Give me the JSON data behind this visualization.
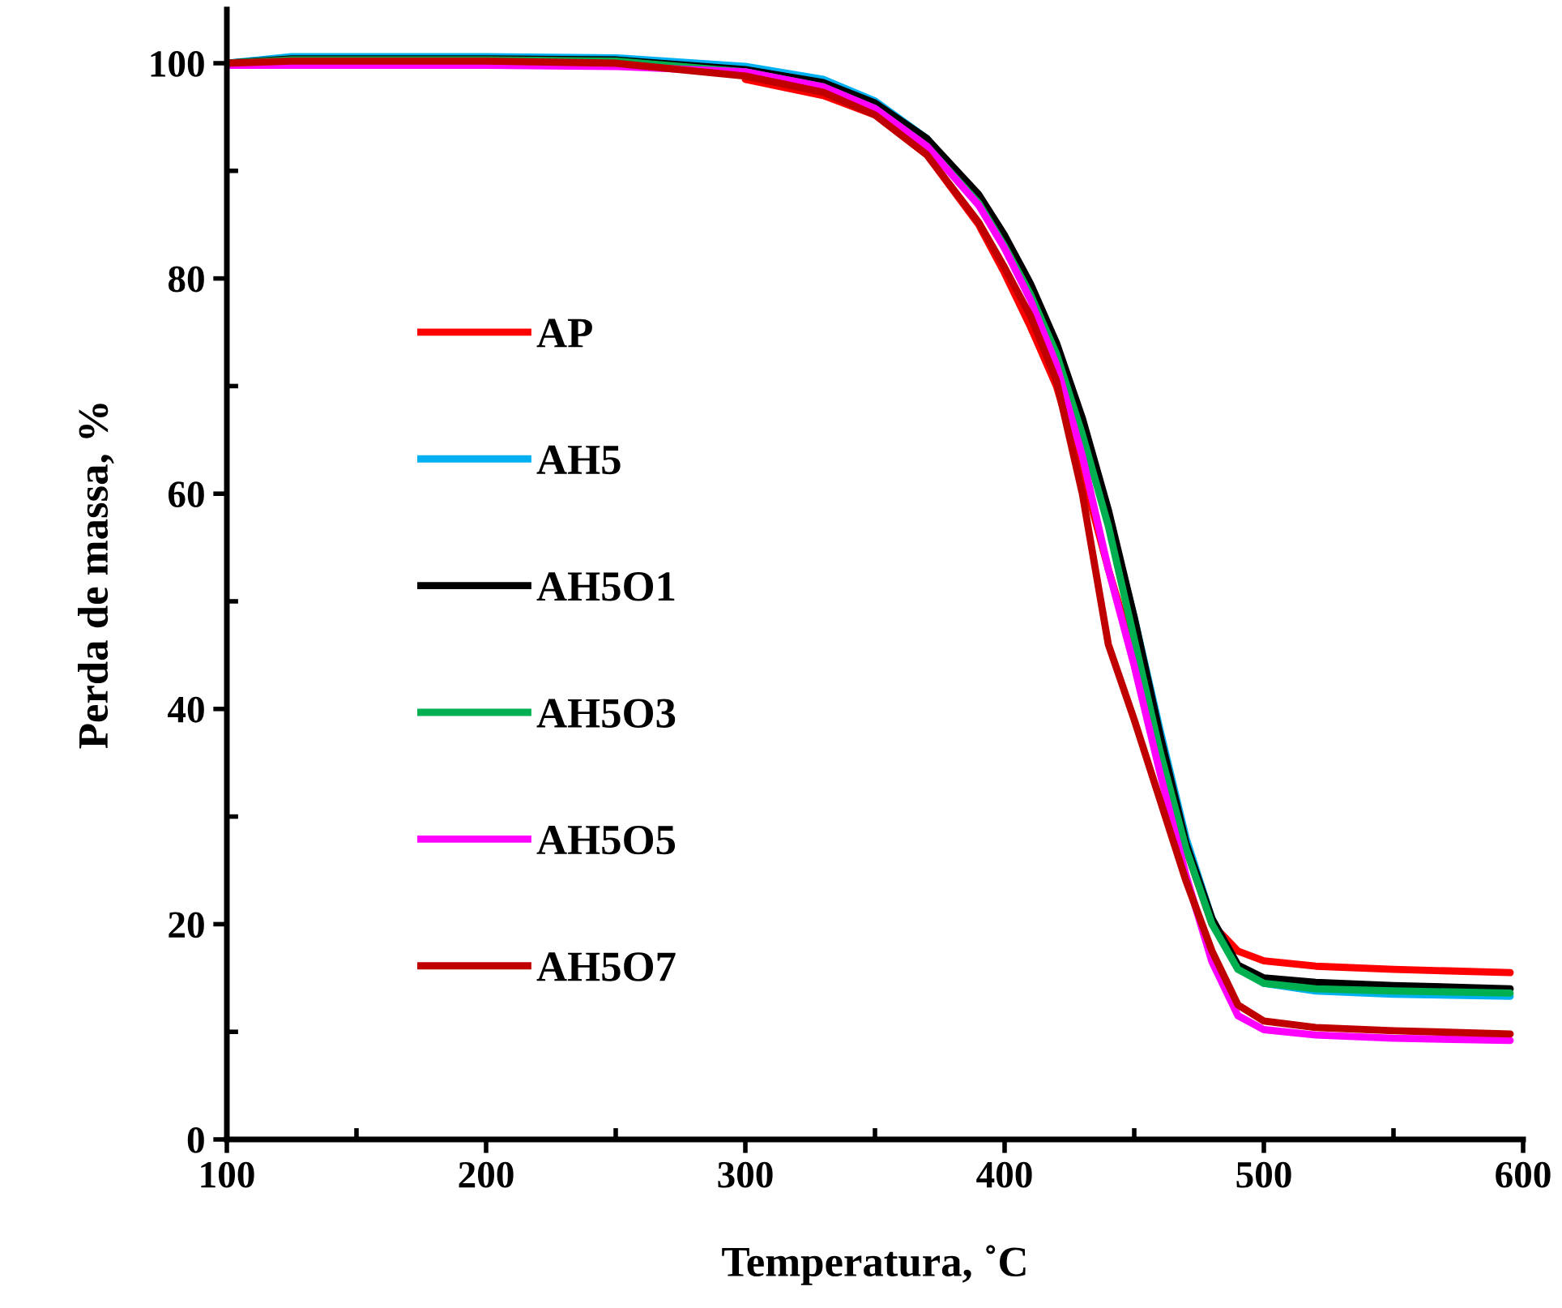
{
  "chart_data": {
    "type": "line",
    "xlabel": "Temperatura, ˚C",
    "ylabel": "Perda de massa, %",
    "x": [
      100,
      125,
      150,
      200,
      250,
      300,
      330,
      350,
      370,
      390,
      400,
      410,
      420,
      430,
      440,
      450,
      460,
      470,
      480,
      490,
      500,
      520,
      550,
      595
    ],
    "xlim": [
      100,
      600
    ],
    "xticks": [
      100,
      200,
      300,
      400,
      500,
      600
    ],
    "ylim": [
      0,
      105
    ],
    "yticks": [
      0,
      20,
      40,
      60,
      80,
      100
    ],
    "grid": false,
    "legend": "left",
    "marker": "none",
    "line_style": "solid",
    "series": [
      {
        "name": "AP",
        "color": "#ff0000",
        "values": [
          null,
          null,
          null,
          null,
          null,
          98.5,
          97.0,
          95.2,
          91.5,
          85.0,
          80.5,
          75.5,
          70.0,
          62.0,
          53.0,
          45.0,
          36.0,
          27.0,
          20.0,
          17.5,
          16.6,
          16.1,
          15.8,
          15.5
        ]
      },
      {
        "name": "AH5",
        "color": "#00b0f0",
        "values": [
          100.0,
          100.6,
          100.6,
          100.6,
          100.5,
          99.7,
          98.5,
          96.5,
          93.0,
          87.5,
          83.5,
          79.0,
          73.5,
          66.5,
          58.0,
          48.5,
          38.0,
          28.0,
          20.5,
          16.0,
          14.5,
          13.8,
          13.5,
          13.3
        ]
      },
      {
        "name": "AH5O1",
        "color": "#000000",
        "values": [
          100.0,
          100.4,
          100.4,
          100.4,
          100.3,
          99.4,
          98.2,
          96.3,
          93.0,
          87.8,
          84.0,
          79.5,
          74.0,
          67.0,
          58.5,
          48.5,
          37.5,
          27.5,
          20.5,
          16.2,
          15.0,
          14.6,
          14.3,
          14.0
        ]
      },
      {
        "name": "AH5O3",
        "color": "#00b050",
        "values": [
          100.0,
          100.3,
          100.3,
          100.3,
          100.2,
          99.2,
          97.8,
          95.8,
          92.3,
          87.0,
          83.0,
          78.5,
          73.0,
          65.5,
          57.0,
          46.5,
          36.0,
          27.0,
          20.0,
          15.8,
          14.5,
          14.0,
          13.8,
          13.6
        ]
      },
      {
        "name": "AH5O5",
        "color": "#ff00ff",
        "values": [
          99.8,
          99.8,
          99.8,
          99.8,
          99.7,
          99.2,
          97.8,
          95.8,
          92.3,
          86.8,
          82.8,
          78.0,
          72.0,
          63.5,
          53.0,
          44.0,
          34.0,
          24.5,
          16.5,
          11.5,
          10.2,
          9.7,
          9.4,
          9.2
        ]
      },
      {
        "name": "AH5O7",
        "color": "#c00000",
        "values": [
          100.0,
          100.2,
          100.2,
          100.2,
          100.0,
          98.8,
          97.3,
          95.2,
          91.5,
          85.2,
          81.0,
          76.5,
          70.5,
          60.0,
          46.0,
          39.0,
          31.5,
          24.0,
          17.5,
          12.5,
          11.0,
          10.4,
          10.1,
          9.8
        ]
      }
    ]
  }
}
